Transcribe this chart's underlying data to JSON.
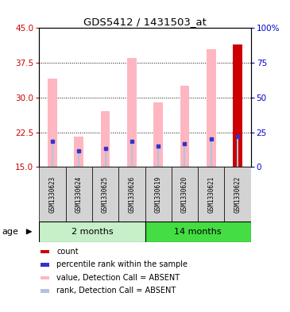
{
  "title": "GDS5412 / 1431503_at",
  "samples": [
    "GSM1330623",
    "GSM1330624",
    "GSM1330625",
    "GSM1330626",
    "GSM1330619",
    "GSM1330620",
    "GSM1330621",
    "GSM1330622"
  ],
  "value_bars": [
    34.0,
    21.5,
    27.0,
    38.5,
    29.0,
    32.5,
    40.5,
    41.5
  ],
  "rank_bars": [
    20.5,
    18.5,
    19.0,
    20.5,
    19.5,
    20.0,
    21.0,
    21.5
  ],
  "count_bar_index": 7,
  "count_bar_value": 41.5,
  "percentile_values": [
    20.5,
    18.5,
    19.0,
    20.5,
    19.5,
    20.0,
    21.0,
    21.5
  ],
  "ylim_min": 15,
  "ylim_max": 45,
  "y_ticks": [
    15,
    22.5,
    30,
    37.5,
    45
  ],
  "y2_ticks": [
    0,
    25,
    50,
    75,
    100
  ],
  "y2_tick_labels": [
    "0",
    "25",
    "50",
    "75",
    "100%"
  ],
  "value_color": "#ffb6c1",
  "rank_color": "#b0c4de",
  "count_color": "#cc0000",
  "percentile_color": "#3333cc",
  "left_axis_color": "#cc0000",
  "right_axis_color": "#0000cc",
  "group1_label": "2 months",
  "group1_color": "#c8f0c8",
  "group2_label": "14 months",
  "group2_color": "#44dd44",
  "sample_bg": "#d3d3d3",
  "age_label": "age",
  "legend_items": [
    {
      "color": "#cc0000",
      "label": "count"
    },
    {
      "color": "#3333cc",
      "label": "percentile rank within the sample"
    },
    {
      "color": "#ffb6c1",
      "label": "value, Detection Call = ABSENT"
    },
    {
      "color": "#b0c4de",
      "label": "rank, Detection Call = ABSENT"
    }
  ]
}
